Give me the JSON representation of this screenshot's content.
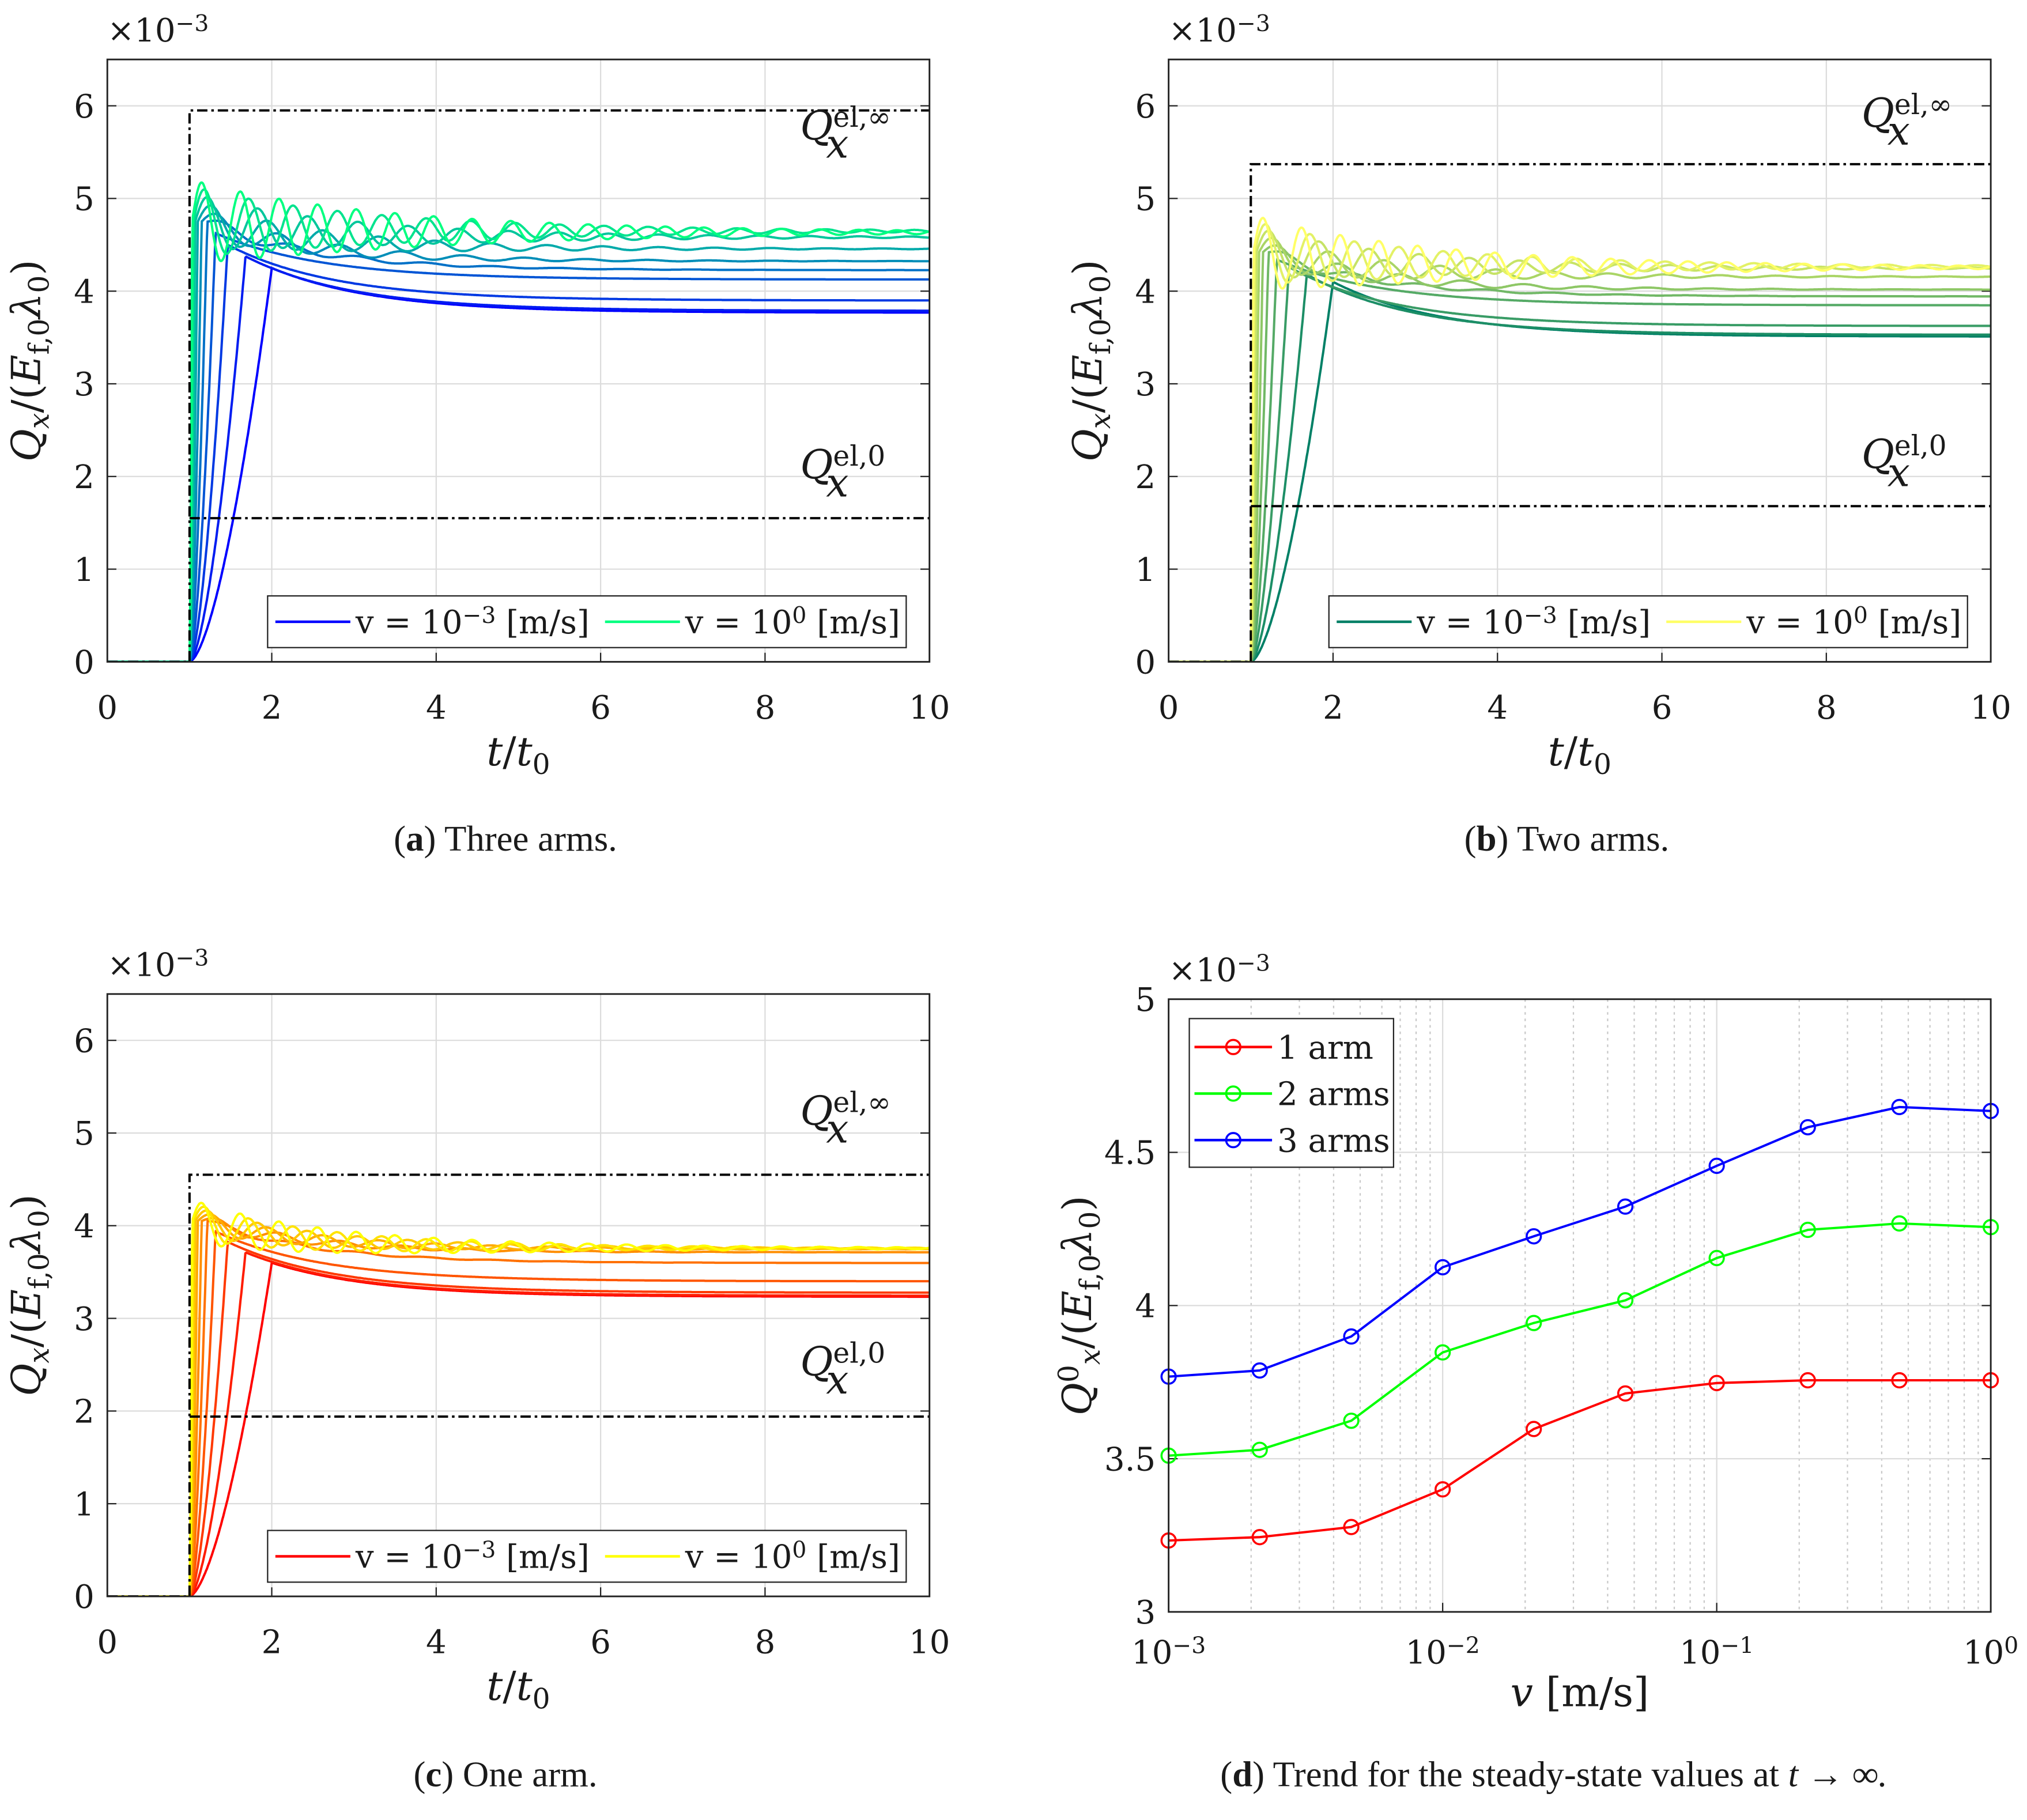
{
  "chart_data": [
    {
      "id": "a",
      "type": "line",
      "caption_letter": "a",
      "caption_text": " Three arms.",
      "xlabel": {
        "t": "t",
        "slash": "/",
        "t0": "t",
        "sub": "0"
      },
      "ylabel": {
        "q": "Q",
        "qsub": "x",
        "mid": "/(",
        "e": "E",
        "esub": "f,0",
        "lam": "λ",
        "lsub": "0",
        "end": ")"
      },
      "multiplier": "×10",
      "multiplier_exp": "−3",
      "xlim": [
        0,
        10
      ],
      "ylim": [
        0,
        6.5
      ],
      "xticks": [
        "0",
        "2",
        "4",
        "6",
        "8",
        "10"
      ],
      "yticks": [
        "0",
        "1",
        "2",
        "3",
        "4",
        "5",
        "6"
      ],
      "grid": true,
      "Q_el_inf": 5.95,
      "Q_el_0": 1.55,
      "annot_inf": {
        "q": "Q",
        "sub": "x",
        "sup": "el,∞"
      },
      "annot_0": {
        "q": "Q",
        "sub": "x",
        "sup": "el,0"
      },
      "colormap": [
        "#0000ff",
        "#00ff80"
      ],
      "legend": [
        {
          "label": "v = 10",
          "exp": "−3",
          "unit": " [m/s]"
        },
        {
          "label": "v = 10",
          "exp": "0",
          "unit": " [m/s]"
        }
      ],
      "legend_position": "bottom-right",
      "v": [
        0.001,
        0.00215,
        0.00464,
        0.01,
        0.0215,
        0.0464,
        0.1,
        0.215,
        0.464,
        1
      ],
      "steady": [
        3.768,
        3.788,
        3.899,
        4.125,
        4.226,
        4.323,
        4.456,
        4.582,
        4.648,
        4.635
      ],
      "peak_start": 4.25,
      "peak_end": 4.75,
      "overshoot_max": 5.2
    },
    {
      "id": "b",
      "type": "line",
      "caption_letter": "b",
      "caption_text": " Two arms.",
      "xlabel": {
        "t": "t",
        "slash": "/",
        "t0": "t",
        "sub": "0"
      },
      "ylabel": {
        "q": "Q",
        "qsub": "x",
        "mid": "/(",
        "e": "E",
        "esub": "f,0",
        "lam": "λ",
        "lsub": "0",
        "end": ")"
      },
      "multiplier": "×10",
      "multiplier_exp": "−3",
      "xlim": [
        0,
        10
      ],
      "ylim": [
        0,
        6.5
      ],
      "xticks": [
        "0",
        "2",
        "4",
        "6",
        "8",
        "10"
      ],
      "yticks": [
        "0",
        "1",
        "2",
        "3",
        "4",
        "5",
        "6"
      ],
      "grid": true,
      "Q_el_inf": 5.37,
      "Q_el_0": 1.68,
      "annot_inf": {
        "q": "Q",
        "sub": "x",
        "sup": "el,∞"
      },
      "annot_0": {
        "q": "Q",
        "sub": "x",
        "sup": "el,0"
      },
      "colormap": [
        "#008066",
        "#ffff66"
      ],
      "legend": [
        {
          "label": "v = 10",
          "exp": "−3",
          "unit": " [m/s]"
        },
        {
          "label": "v = 10",
          "exp": "0",
          "unit": " [m/s]"
        }
      ],
      "legend_position": "bottom-right",
      "v": [
        0.001,
        0.00215,
        0.00464,
        0.01,
        0.0215,
        0.0464,
        0.1,
        0.215,
        0.464,
        1
      ],
      "steady": [
        3.51,
        3.529,
        3.624,
        3.847,
        3.943,
        4.017,
        4.155,
        4.247,
        4.268,
        4.256
      ],
      "peak_start": 4.1,
      "peak_end": 4.42,
      "overshoot_max": 4.82
    },
    {
      "id": "c",
      "type": "line",
      "caption_letter": "c",
      "caption_text": " One arm.",
      "xlabel": {
        "t": "t",
        "slash": "/",
        "t0": "t",
        "sub": "0"
      },
      "ylabel": {
        "q": "Q",
        "qsub": "x",
        "mid": "/(",
        "e": "E",
        "esub": "f,0",
        "lam": "λ",
        "lsub": "0",
        "end": ")"
      },
      "multiplier": "×10",
      "multiplier_exp": "−3",
      "xlim": [
        0,
        10
      ],
      "ylim": [
        0,
        6.5
      ],
      "xticks": [
        "0",
        "2",
        "4",
        "6",
        "8",
        "10"
      ],
      "yticks": [
        "0",
        "1",
        "2",
        "3",
        "4",
        "5",
        "6"
      ],
      "grid": true,
      "Q_el_inf": 4.55,
      "Q_el_0": 1.94,
      "annot_inf": {
        "q": "Q",
        "sub": "x",
        "sup": "el,∞"
      },
      "annot_0": {
        "q": "Q",
        "sub": "x",
        "sup": "el,0"
      },
      "colormap": [
        "#ff0000",
        "#ffff00"
      ],
      "legend": [
        {
          "label": "v = 10",
          "exp": "−3",
          "unit": " [m/s]"
        },
        {
          "label": "v = 10",
          "exp": "0",
          "unit": " [m/s]"
        }
      ],
      "legend_position": "bottom-right",
      "v": [
        0.001,
        0.00215,
        0.00464,
        0.01,
        0.0215,
        0.0464,
        0.1,
        0.215,
        0.464,
        1
      ],
      "steady": [
        3.233,
        3.244,
        3.277,
        3.4,
        3.597,
        3.713,
        3.747,
        3.756,
        3.756,
        3.756
      ],
      "peak_start": 3.6,
      "peak_end": 4.05,
      "overshoot_max": 4.28
    },
    {
      "id": "d",
      "type": "line",
      "caption_letter": "d",
      "caption_text": " Trend for the steady-state values at ",
      "caption_math": "t → ∞.",
      "xlabel": {
        "v": "v",
        "unit": " [m/s]"
      },
      "ylabel": {
        "q": "Q",
        "qsub": "x",
        "qsup": "0",
        "mid": "/(",
        "e": "E",
        "esub": "f,0",
        "lam": "λ",
        "lsub": "0",
        "end": ")"
      },
      "multiplier": "×10",
      "multiplier_exp": "−3",
      "xscale": "log",
      "xlim": [
        0.001,
        1
      ],
      "ylim": [
        3,
        5
      ],
      "xticks": [
        {
          "base": "10",
          "exp": "−3"
        },
        {
          "base": "10",
          "exp": "−2"
        },
        {
          "base": "10",
          "exp": "−1"
        },
        {
          "base": "10",
          "exp": "0"
        }
      ],
      "yticks": [
        "3",
        "3.5",
        "4",
        "4.5",
        "5"
      ],
      "grid": true,
      "legend_position": "top-left",
      "x": [
        0.001,
        0.00215,
        0.00464,
        0.01,
        0.0215,
        0.0464,
        0.1,
        0.215,
        0.464,
        1
      ],
      "series": [
        {
          "name": "1 arm",
          "color": "#ff0000",
          "values": [
            3.233,
            3.244,
            3.277,
            3.4,
            3.597,
            3.713,
            3.747,
            3.756,
            3.756,
            3.756
          ]
        },
        {
          "name": "2 arms",
          "color": "#00ff00",
          "values": [
            3.51,
            3.529,
            3.624,
            3.847,
            3.943,
            4.017,
            4.155,
            4.247,
            4.268,
            4.256
          ]
        },
        {
          "name": "3 arms",
          "color": "#0000ff",
          "values": [
            3.768,
            3.788,
            3.899,
            4.125,
            4.226,
            4.323,
            4.456,
            4.582,
            4.648,
            4.635
          ]
        }
      ]
    }
  ]
}
